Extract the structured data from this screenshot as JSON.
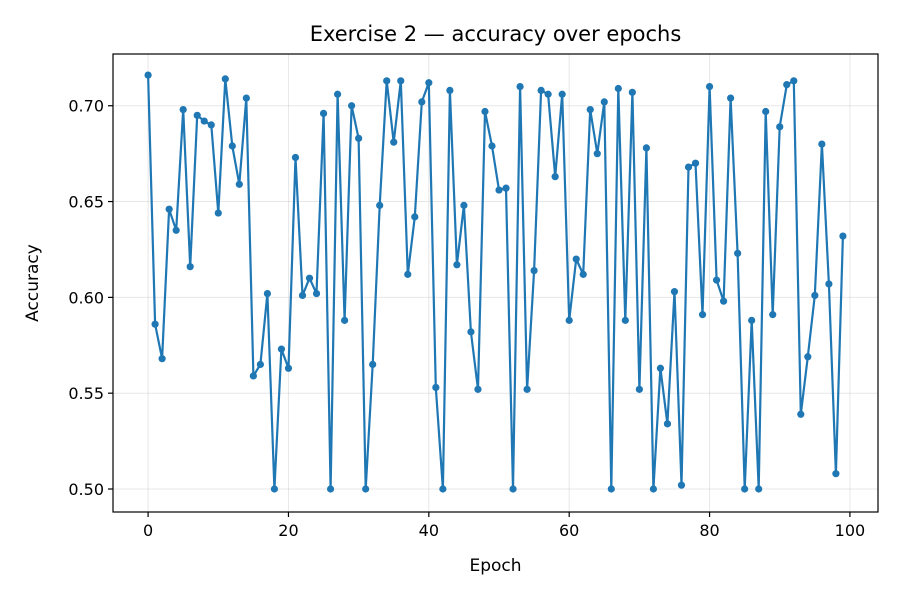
{
  "chart_data": {
    "type": "line",
    "title": "Exercise 2 — accuracy over epochs",
    "xlabel": "Epoch",
    "ylabel": "Accuracy",
    "xlim": [
      -5,
      104
    ],
    "ylim": [
      0.488,
      0.727
    ],
    "xticks": [
      0,
      20,
      40,
      60,
      80,
      100
    ],
    "xtick_labels": [
      "0",
      "20",
      "40",
      "60",
      "80",
      "100"
    ],
    "yticks": [
      0.5,
      0.55,
      0.6,
      0.65,
      0.7
    ],
    "ytick_labels": [
      "0.50",
      "0.55",
      "0.60",
      "0.65",
      "0.70"
    ],
    "grid": true,
    "legend": "none",
    "series_color": "#1f77b4",
    "marker": "circle",
    "series": [
      {
        "x": [
          0,
          1,
          2,
          3,
          4,
          5,
          6,
          7,
          8,
          9,
          10,
          11,
          12,
          13,
          14,
          15,
          16,
          17,
          18,
          19,
          20,
          21,
          22,
          23,
          24,
          25,
          26,
          27,
          28,
          29,
          30,
          31,
          32,
          33,
          34,
          35,
          36,
          37,
          38,
          39,
          40,
          41,
          42,
          43,
          44,
          45,
          46,
          47,
          48,
          49,
          50,
          51,
          52,
          53,
          54,
          55,
          56,
          57,
          58,
          59,
          60,
          61,
          62,
          63,
          64,
          65,
          66,
          67,
          68,
          69,
          70,
          71,
          72,
          73,
          74,
          75,
          76,
          77,
          78,
          79,
          80,
          81,
          82,
          83,
          84,
          85,
          86,
          87,
          88,
          89,
          90,
          91,
          92,
          93,
          94,
          95,
          96,
          97,
          98,
          99
        ],
        "y": [
          0.716,
          0.586,
          0.568,
          0.646,
          0.635,
          0.698,
          0.616,
          0.695,
          0.692,
          0.69,
          0.644,
          0.714,
          0.679,
          0.659,
          0.704,
          0.559,
          0.565,
          0.602,
          0.5,
          0.573,
          0.563,
          0.673,
          0.601,
          0.61,
          0.602,
          0.696,
          0.5,
          0.706,
          0.588,
          0.7,
          0.683,
          0.5,
          0.565,
          0.648,
          0.713,
          0.681,
          0.713,
          0.612,
          0.642,
          0.702,
          0.712,
          0.553,
          0.5,
          0.708,
          0.617,
          0.648,
          0.582,
          0.552,
          0.697,
          0.679,
          0.656,
          0.657,
          0.5,
          0.71,
          0.552,
          0.614,
          0.708,
          0.706,
          0.663,
          0.706,
          0.588,
          0.62,
          0.612,
          0.698,
          0.675,
          0.702,
          0.5,
          0.709,
          0.588,
          0.707,
          0.552,
          0.678,
          0.5,
          0.563,
          0.534,
          0.603,
          0.502,
          0.668,
          0.67,
          0.591,
          0.71,
          0.609,
          0.598,
          0.704,
          0.623,
          0.5,
          0.588,
          0.5,
          0.697,
          0.591,
          0.689,
          0.711,
          0.713,
          0.539,
          0.569,
          0.601,
          0.68,
          0.607,
          0.508,
          0.632
        ]
      }
    ]
  }
}
